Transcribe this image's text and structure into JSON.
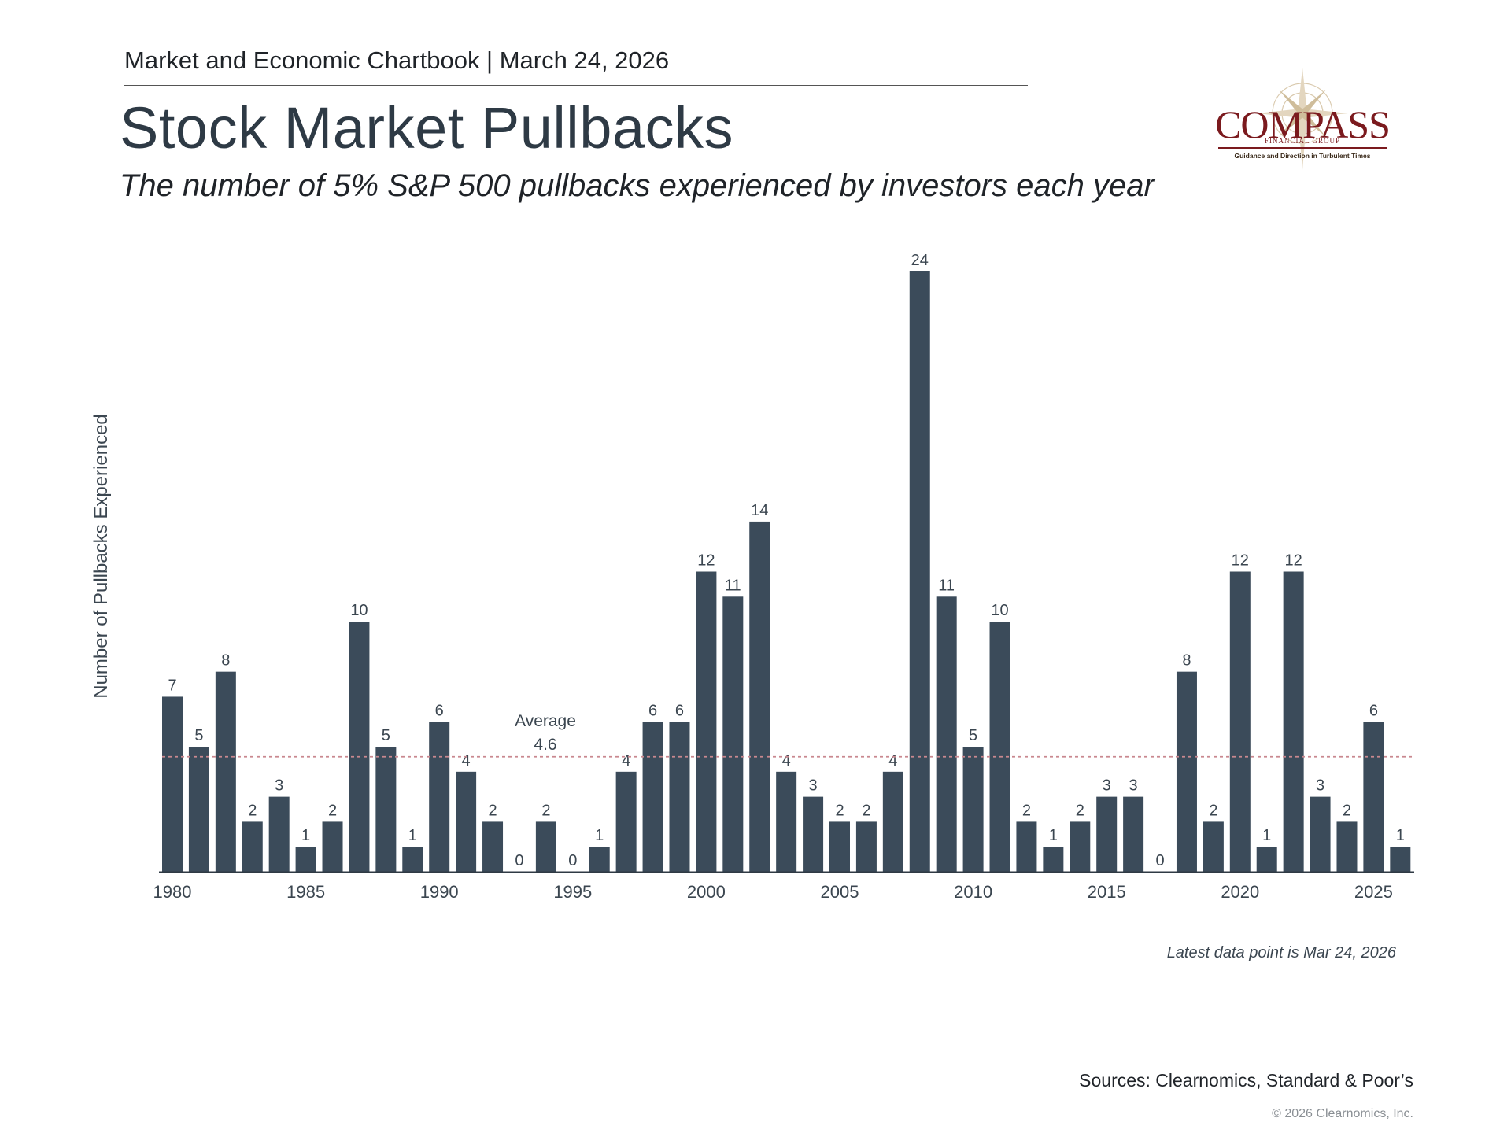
{
  "header": {
    "chartbook_line": "Market and Economic Chartbook | March 24, 2026",
    "title": "Stock Market Pullbacks",
    "subtitle": "The number of 5% S&P 500 pullbacks experienced by investors each year"
  },
  "logo": {
    "word": "COMPASS",
    "group": "FINANCIAL GROUP",
    "tagline": "Guidance and Direction in Turbulent Times"
  },
  "colors": {
    "bar": "#3b4b5a",
    "average_line": "#c9888f",
    "text": "#3b4650",
    "brand": "#7b1a1e"
  },
  "chart_data": {
    "type": "bar",
    "ylabel": "Number of Pullbacks Experienced",
    "categories": [
      1980,
      1981,
      1982,
      1983,
      1984,
      1985,
      1986,
      1987,
      1988,
      1989,
      1990,
      1991,
      1992,
      1993,
      1994,
      1995,
      1996,
      1997,
      1998,
      1999,
      2000,
      2001,
      2002,
      2003,
      2004,
      2005,
      2006,
      2007,
      2008,
      2009,
      2010,
      2011,
      2012,
      2013,
      2014,
      2015,
      2016,
      2017,
      2018,
      2019,
      2020,
      2021,
      2022,
      2023,
      2024,
      2025,
      2026
    ],
    "values": [
      7,
      5,
      8,
      2,
      3,
      1,
      2,
      10,
      5,
      1,
      6,
      4,
      2,
      0,
      2,
      0,
      1,
      4,
      6,
      6,
      12,
      11,
      14,
      4,
      3,
      2,
      2,
      4,
      24,
      11,
      5,
      10,
      2,
      1,
      2,
      3,
      3,
      0,
      8,
      2,
      12,
      1,
      12,
      3,
      2,
      6,
      1
    ],
    "x_tick_labels": [
      "1980",
      "1985",
      "1990",
      "1995",
      "2000",
      "2005",
      "2010",
      "2015",
      "2020",
      "2025"
    ],
    "average": 4.6,
    "average_label": "Average",
    "ylim": [
      0,
      24
    ],
    "grid": false,
    "note": "Latest data point is Mar 24, 2026"
  },
  "footer": {
    "sources": "Sources: Clearnomics, Standard & Poor’s",
    "copyright": "© 2026 Clearnomics, Inc."
  }
}
